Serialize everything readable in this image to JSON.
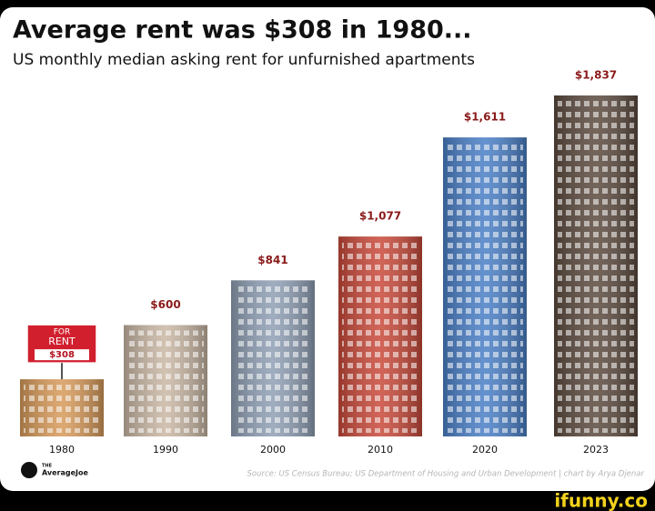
{
  "chart_data": {
    "type": "bar",
    "title": "Average rent was $308 in 1980...",
    "subtitle": "US monthly median asking rent for unfurnished apartments",
    "categories": [
      "1980",
      "1990",
      "2000",
      "2010",
      "2020",
      "2023"
    ],
    "values": [
      308,
      600,
      841,
      1077,
      1611,
      1837
    ],
    "value_labels": [
      "$308",
      "$600",
      "$841",
      "$1,077",
      "$1,611",
      "$1,837"
    ],
    "colors": [
      "#d79a5a",
      "#c9b7a4",
      "#8f9fb4",
      "#c8493a",
      "#4a7fc6",
      "#5b4a3e"
    ],
    "sign_text": [
      "FOR",
      "RENT"
    ],
    "source": "Source: US Census Bureau; US Department of Housing and Urban Development | chart by Arya Djenar",
    "brand": "AverageJoe",
    "brand_prefix": "THE",
    "watermark": "ifunny.co"
  }
}
